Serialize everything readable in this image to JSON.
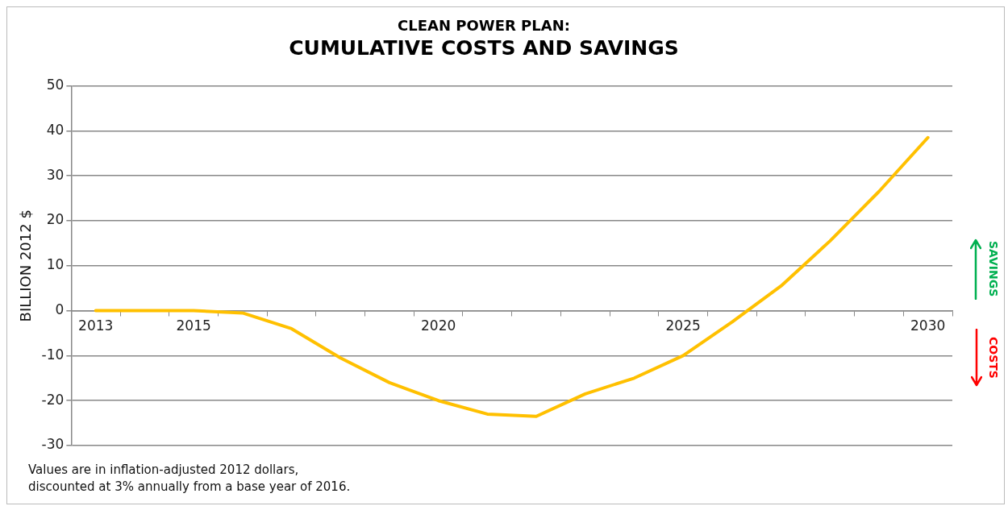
{
  "chart_data": {
    "type": "line",
    "title": "CLEAN POWER PLAN:",
    "subtitle": "CUMULATIVE COSTS AND SAVINGS",
    "ylabel": "BILLION 2012 $",
    "categories": [
      "2013",
      null,
      "2015",
      null,
      null,
      null,
      null,
      "2020",
      null,
      null,
      null,
      null,
      "2025",
      null,
      null,
      null,
      null,
      "2030"
    ],
    "series": [
      {
        "color": "#ffc000",
        "values": [
          0,
          0,
          0,
          -0.5,
          -4,
          -10.5,
          -16,
          -20,
          -23,
          -23.5,
          -18.5,
          -15,
          -10,
          -2.5,
          5.5,
          15.5,
          26.5,
          38.5
        ]
      }
    ],
    "ylim": [
      -30,
      50
    ],
    "yticks": [
      -30,
      -20,
      -10,
      0,
      10,
      20,
      30,
      40,
      50
    ],
    "grid": "y",
    "legend": false,
    "marker": "none",
    "line_style": "solid",
    "annotations": [
      "SAVINGS",
      "COSTS",
      "Values are in inflation-adjusted 2012 dollars,",
      "discounted at 3% annually from a base year of 2016."
    ]
  }
}
